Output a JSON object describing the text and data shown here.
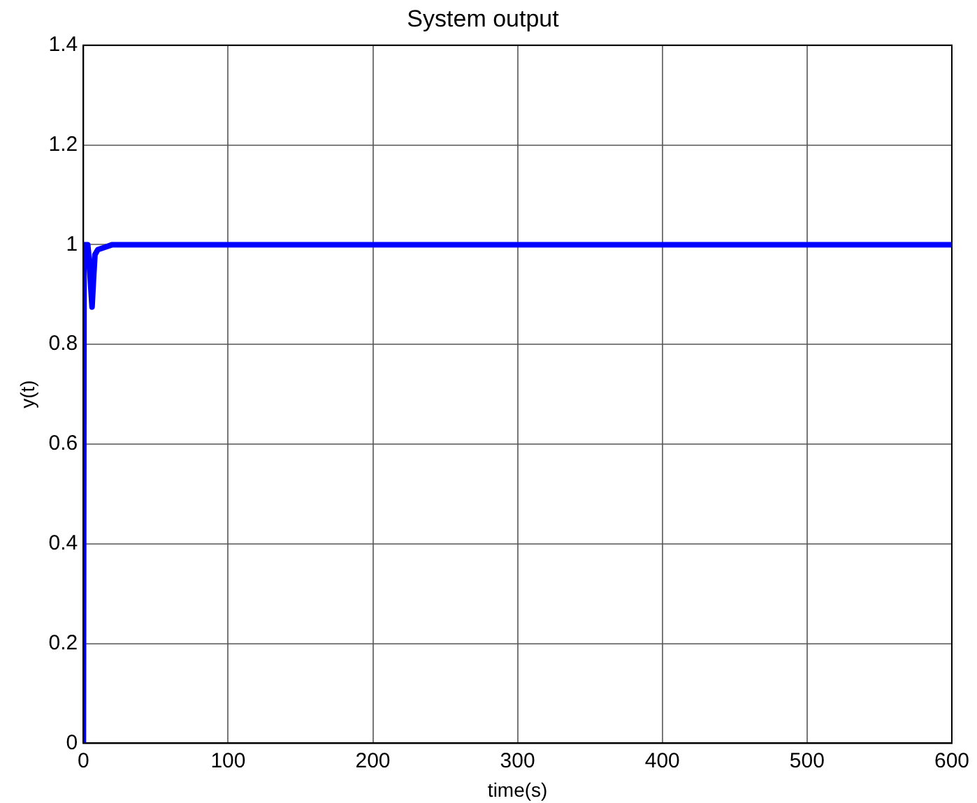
{
  "chart_data": {
    "type": "line",
    "title": "System output",
    "xlabel": "time(s)",
    "ylabel": "y(t)",
    "x": [
      0,
      0.5,
      2,
      3,
      4,
      5,
      6,
      7,
      8,
      10,
      15,
      20,
      100,
      200,
      300,
      400,
      500,
      600
    ],
    "series": [
      {
        "color": "#0000ff",
        "values": [
          0,
          1,
          1,
          1,
          0.97,
          0.92,
          0.875,
          0.93,
          0.98,
          0.99,
          0.995,
          1,
          1,
          1,
          1,
          1,
          1,
          1
        ]
      }
    ],
    "xlim": [
      0,
      600
    ],
    "ylim": [
      0,
      1.4
    ],
    "xticks": [
      0,
      100,
      200,
      300,
      400,
      500,
      600
    ],
    "yticks": [
      0,
      0.2,
      0.4,
      0.6,
      0.8,
      1,
      1.2,
      1.4
    ],
    "grid": true,
    "legend": false,
    "marker": "none",
    "line_style": "solid"
  }
}
